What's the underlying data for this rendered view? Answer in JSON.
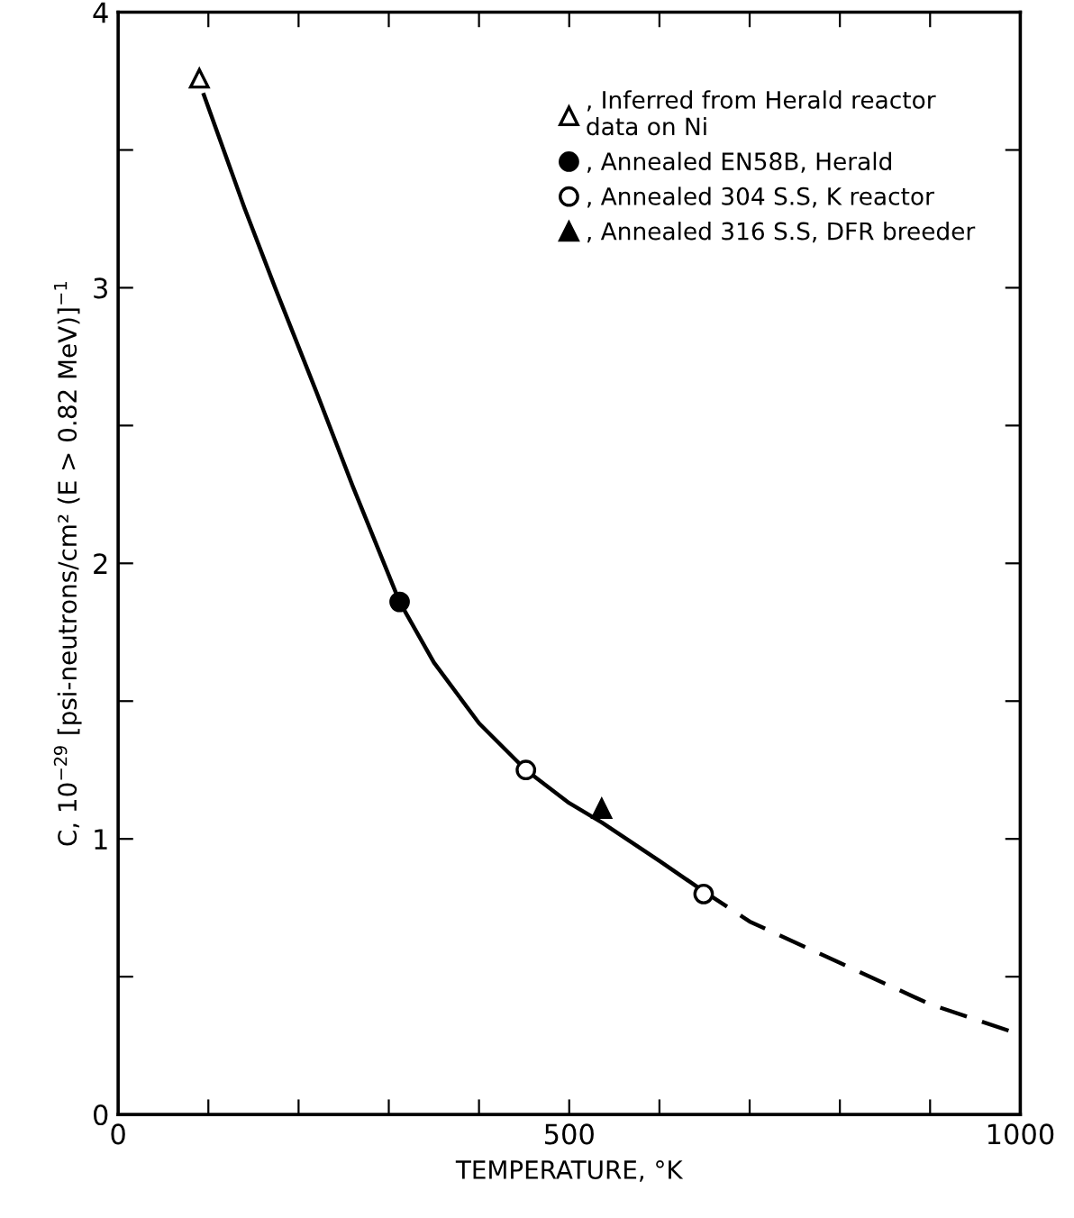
{
  "chart_data": {
    "type": "line",
    "xlabel": "TEMPERATURE, °K",
    "ylabel": "C, 10$^{−29}$ [psi-neutrons/cm² (E > 0.82 MeV)]$^{−1}$",
    "xlim": [
      0,
      1000
    ],
    "ylim": [
      0,
      4
    ],
    "xticks": [
      0,
      {
        "value": 100,
        "label": null
      },
      {
        "value": 200,
        "label": null
      },
      {
        "value": 300,
        "label": null
      },
      {
        "value": 400,
        "label": null
      },
      500,
      {
        "value": 600,
        "label": null
      },
      {
        "value": 700,
        "label": null
      },
      {
        "value": 800,
        "label": null
      },
      {
        "value": 900,
        "label": null
      },
      1000
    ],
    "yticks": [
      0,
      {
        "value": 0.5,
        "label": null
      },
      1,
      {
        "value": 1.5,
        "label": null
      },
      2,
      {
        "value": 2.5,
        "label": null
      },
      3,
      {
        "value": 3.5,
        "label": null
      },
      4
    ],
    "grid": false,
    "legend": "top right",
    "series": [
      {
        "color": "#000000",
        "line_style": "solid",
        "marker": "none",
        "x": [
          95,
          140,
          174,
          220,
          260,
          312,
          350,
          400,
          452,
          500,
          536,
          600,
          649
        ],
        "values": [
          3.7,
          3.29,
          3.0,
          2.62,
          2.28,
          1.86,
          1.64,
          1.42,
          1.25,
          1.13,
          1.06,
          0.92,
          0.81
        ]
      },
      {
        "color": "#000000",
        "line_style": "dashed",
        "marker": "none",
        "x": [
          649,
          700,
          800,
          900,
          1000
        ],
        "values": [
          0.81,
          0.7,
          0.55,
          0.4,
          0.29
        ]
      },
      {
        "type": "scatter",
        "name": ", Inferred from Herald reactor\ndata on Ni",
        "color": "#ffffff",
        "marker": "triangle",
        "x": [
          90
        ],
        "values": [
          3.76
        ]
      },
      {
        "type": "scatter",
        "name": ", Annealed EN58B, Herald",
        "color": "#000000",
        "marker": "circle",
        "x": [
          312
        ],
        "values": [
          1.86
        ]
      },
      {
        "type": "scatter",
        "name": ", Annealed 304 S.S, K reactor",
        "color": "#ffffff",
        "marker": "circle",
        "x": [
          452,
          649
        ],
        "values": [
          1.25,
          0.8
        ]
      },
      {
        "type": "scatter",
        "name": ", Annealed 316 S.S, DFR breeder",
        "color": "#000000",
        "marker": "triangle",
        "x": [
          536
        ],
        "values": [
          1.11
        ]
      }
    ]
  }
}
